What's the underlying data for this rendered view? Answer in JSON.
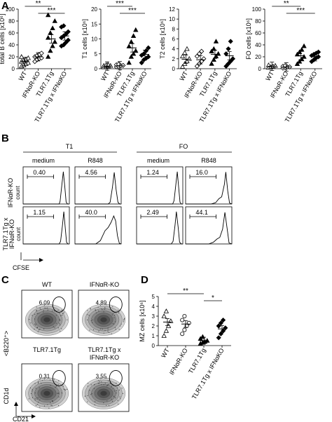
{
  "panel_labels": {
    "a": "A",
    "b": "B",
    "c": "C",
    "d": "D"
  },
  "groups": [
    "WT",
    "IFNαR-KO",
    "TLR7.1Tg",
    "TLR7.1Tg x IFNαKO"
  ],
  "chart_data": [
    {
      "type": "scatter",
      "ylabel": "total B cells [x10⁶]",
      "yticks": [
        "0",
        "20",
        "40",
        "60",
        "80",
        "100"
      ],
      "ylim": [
        0,
        100
      ],
      "categories": [
        "WT",
        "IFNαR-KO",
        "TLR7.1Tg",
        "TLR7.1Tg x IFNαKO"
      ],
      "markers": [
        "triangle-open",
        "diamond-open",
        "triangle-filled",
        "diamond-filled"
      ],
      "points": [
        [
          4,
          6,
          8,
          10,
          12,
          14,
          16,
          18,
          20
        ],
        [
          12,
          15,
          17,
          18,
          20,
          22,
          24,
          26
        ],
        [
          20,
          30,
          38,
          45,
          52,
          60,
          68,
          80,
          90
        ],
        [
          38,
          40,
          44,
          48,
          52,
          55,
          58,
          62,
          70,
          72
        ]
      ],
      "means": [
        12,
        20,
        50,
        55
      ],
      "significance": [
        {
          "from": 0,
          "to": 2,
          "label": "**"
        },
        {
          "from": 1,
          "to": 3,
          "label": "***"
        }
      ]
    },
    {
      "type": "scatter",
      "ylabel": "T1 cells [x10⁶]",
      "yticks": [
        "0",
        "5",
        "10",
        "15",
        "20"
      ],
      "ylim": [
        0,
        20
      ],
      "categories": [
        "WT",
        "IFNαR-KO",
        "TLR7.1Tg",
        "TLR7.1Tg x IFNαKO"
      ],
      "markers": [
        "triangle-open",
        "diamond-open",
        "triangle-filled",
        "diamond-filled"
      ],
      "points": [
        [
          0.5,
          0.6,
          0.8,
          1.0,
          1.0,
          1.2,
          1.3
        ],
        [
          0.6,
          0.8,
          1.0,
          1.1,
          1.3,
          1.5
        ],
        [
          2,
          4,
          5,
          6,
          7.5,
          9,
          11,
          13
        ],
        [
          2,
          3,
          3.5,
          4,
          4.5,
          5,
          6,
          7
        ]
      ],
      "means": [
        0.9,
        1.0,
        7.0,
        4.8
      ],
      "significance": [
        {
          "from": 0,
          "to": 2,
          "label": "***"
        },
        {
          "from": 1,
          "to": 3,
          "label": "***"
        }
      ]
    },
    {
      "type": "scatter",
      "ylabel": "T2 cells [x10⁶]",
      "yticks": [
        "0",
        "2",
        "4",
        "6",
        "8",
        "10",
        "12"
      ],
      "ylim": [
        0,
        12
      ],
      "categories": [
        "WT",
        "IFNαR-KO",
        "TLR7.1Tg",
        "TLR7.1Tg x IFNαKO"
      ],
      "markers": [
        "triangle-open",
        "diamond-open",
        "triangle-filled",
        "diamond-filled"
      ],
      "points": [
        [
          0.4,
          1.0,
          1.5,
          2.0,
          2.5,
          3.2,
          4.0
        ],
        [
          0.5,
          1.0,
          1.5,
          2.0,
          2.5,
          3.0,
          3.5
        ],
        [
          1.0,
          1.8,
          2.5,
          3.0,
          3.5,
          4.0,
          5.5
        ],
        [
          0.5,
          1.0,
          1.5,
          2.0,
          3.0,
          4.0,
          5.5
        ]
      ],
      "means": [
        1.9,
        1.8,
        2.9,
        2.6
      ],
      "significance": []
    },
    {
      "type": "scatter",
      "ylabel": "FO cells [x10⁶]",
      "yticks": [
        "0",
        "20",
        "40",
        "60",
        "80",
        "100"
      ],
      "ylim": [
        0,
        100
      ],
      "categories": [
        "WT",
        "IFNαR-KO",
        "TLR7.1Tg",
        "TLR7.1Tg x IFNαKO"
      ],
      "markers": [
        "triangle-open",
        "diamond-open",
        "triangle-filled",
        "diamond-filled"
      ],
      "points": [
        [
          2,
          3,
          4,
          5,
          6
        ],
        [
          1,
          2,
          3,
          3,
          4,
          5
        ],
        [
          8,
          12,
          16,
          20,
          24,
          28,
          32,
          38
        ],
        [
          12,
          15,
          18,
          20,
          22,
          24,
          26,
          28
        ]
      ],
      "means": [
        4,
        3,
        22,
        20
      ],
      "significance": [
        {
          "from": 0,
          "to": 2,
          "label": "**"
        },
        {
          "from": 1,
          "to": 3,
          "label": "***"
        }
      ]
    },
    {
      "type": "scatter",
      "ylabel": "MZ cells [x10⁶]",
      "yticks": [
        "0",
        "1",
        "2",
        "3",
        "4",
        "5"
      ],
      "ylim": [
        0,
        5
      ],
      "categories": [
        "WT",
        "IFNαR-KO",
        "TLR7.1Tg",
        "TLR7.1Tg x IFNαKO"
      ],
      "markers": [
        "triangle-open",
        "circle-open",
        "triangle-filled",
        "diamond-filled"
      ],
      "points": [
        [
          1.0,
          1.5,
          2.0,
          2.5,
          3.0,
          3.5
        ],
        [
          1.2,
          1.6,
          2.0,
          2.3,
          2.6,
          3.0
        ],
        [
          0.2,
          0.3,
          0.4,
          0.5,
          0.7,
          0.9
        ],
        [
          0.8,
          1.2,
          1.5,
          1.8,
          2.0,
          2.3,
          2.6
        ]
      ],
      "means": [
        2.4,
        2.2,
        0.5,
        1.7
      ],
      "significance": [
        {
          "from": 0,
          "to": 2,
          "label": "**"
        },
        {
          "from": 2,
          "to": 3,
          "label": "*"
        }
      ]
    }
  ],
  "panel_b": {
    "col_groups": [
      "T1",
      "FO"
    ],
    "cols": [
      "medium",
      "R848",
      "medium",
      "R848"
    ],
    "rows": [
      {
        "label1": "IFNαR-KO",
        "label2": "count",
        "values": [
          "0.40",
          "4.56",
          "1.24",
          "16.0"
        ]
      },
      {
        "label1": "TLR7.1Tg x",
        "label2": "IFNαR-KO",
        "label3": "count",
        "values": [
          "1.15",
          "40.0",
          "2.49",
          "44.1"
        ]
      }
    ],
    "xlabel": "CFSE"
  },
  "panel_c": {
    "plots": [
      {
        "title": "WT",
        "value": "6.09"
      },
      {
        "title": "IFNαR-KO",
        "value": "4.89"
      },
      {
        "title": "TLR7.1Tg",
        "value": "0.31"
      },
      {
        "title": "TLR7.1Tg x",
        "title2": "IFNαR-KO",
        "value": "3.55"
      }
    ],
    "ylabel": "<B220⁺>",
    "ylabel2": "CD1d",
    "xlabel": "CD21"
  }
}
